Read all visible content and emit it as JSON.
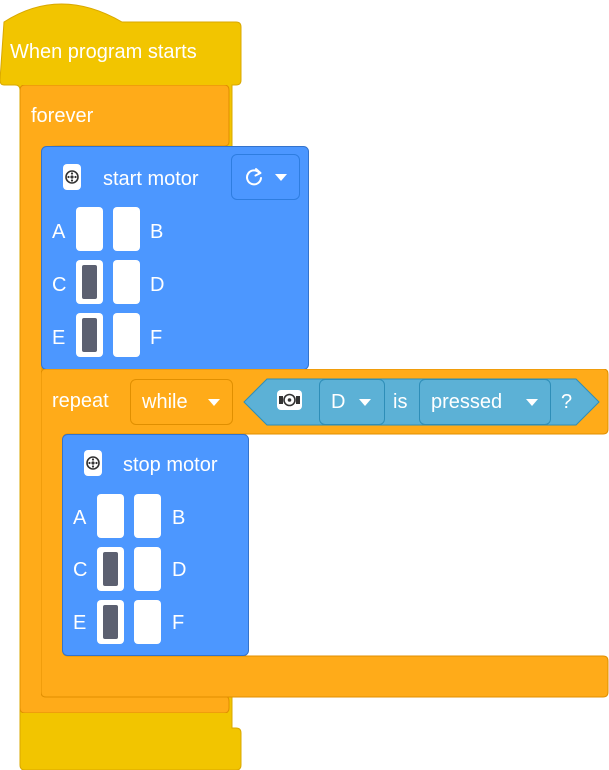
{
  "hat": {
    "label": "When program starts"
  },
  "forever": {
    "label": "forever"
  },
  "start_motor": {
    "label": "start motor",
    "direction_icon": "clockwise-arrow-icon",
    "ports": [
      {
        "left": "A",
        "right": "B",
        "left_selected": false,
        "right_selected": false
      },
      {
        "left": "C",
        "right": "D",
        "left_selected": true,
        "right_selected": false
      },
      {
        "left": "E",
        "right": "F",
        "left_selected": true,
        "right_selected": false
      }
    ]
  },
  "repeat": {
    "label": "repeat",
    "mode": "while",
    "condition": {
      "port": "D",
      "is_label": "is",
      "state": "pressed",
      "question": "?"
    }
  },
  "stop_motor": {
    "label": "stop motor",
    "ports": [
      {
        "left": "A",
        "right": "B"
      },
      {
        "left": "C",
        "right": "D"
      },
      {
        "left": "E",
        "right": "F"
      }
    ]
  },
  "colors": {
    "events": "#f2c500",
    "control": "#ffab19",
    "motor": "#4c97ff",
    "sensor": "#5cb1d6"
  }
}
